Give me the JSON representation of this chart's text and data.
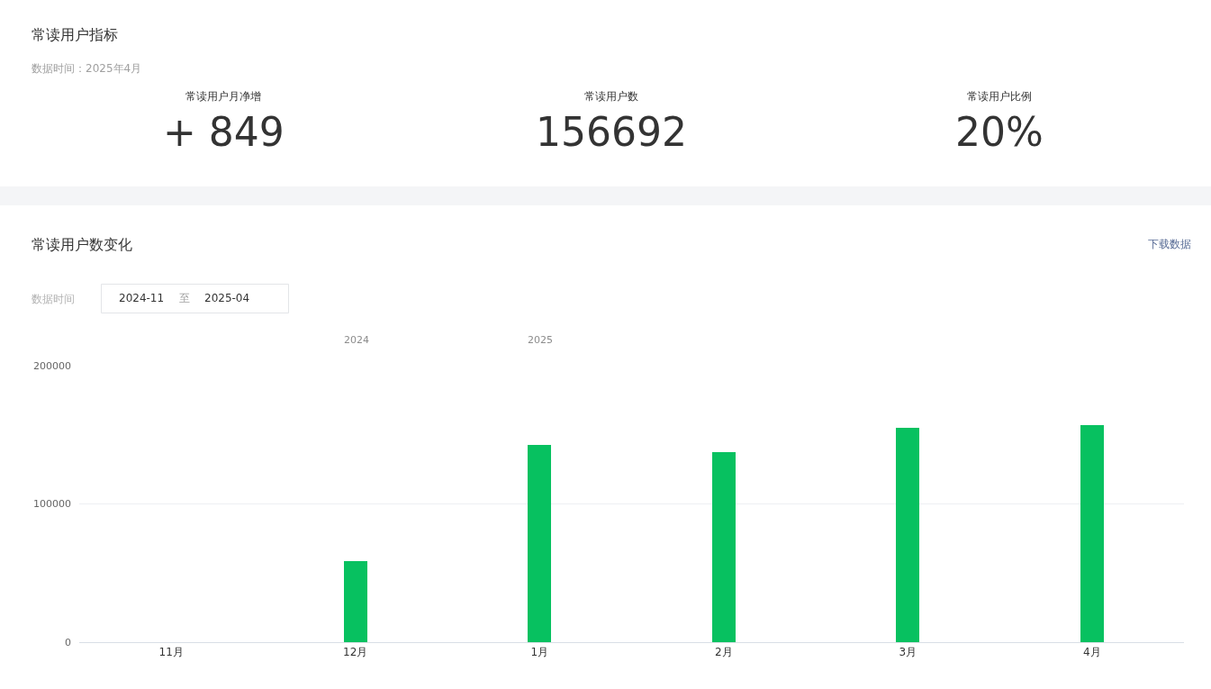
{
  "chart_data": [
    {
      "type": "other",
      "title": "常读用户指标",
      "subtitle": "数据时间：2025年4月",
      "categories": [
        "常读用户月净增",
        "常读用户数",
        "常读用户比例"
      ],
      "value_labels": [
        "+ 849",
        "156692",
        "20%"
      ]
    },
    {
      "type": "bar",
      "title": "常读用户数变化",
      "categories": [
        "11月",
        "12月",
        "1月",
        "2月",
        "3月",
        "4月"
      ],
      "values": [
        null,
        58600,
        142500,
        137700,
        154800,
        156700
      ],
      "color": "#07c160",
      "ylim": [
        0,
        200000
      ],
      "yticks": [
        0,
        100000,
        200000
      ],
      "grid": "y",
      "annotations": [
        "下载数据",
        "数据时间",
        "2024-11",
        "至",
        "2025-04",
        "2024",
        "2025"
      ]
    }
  ]
}
